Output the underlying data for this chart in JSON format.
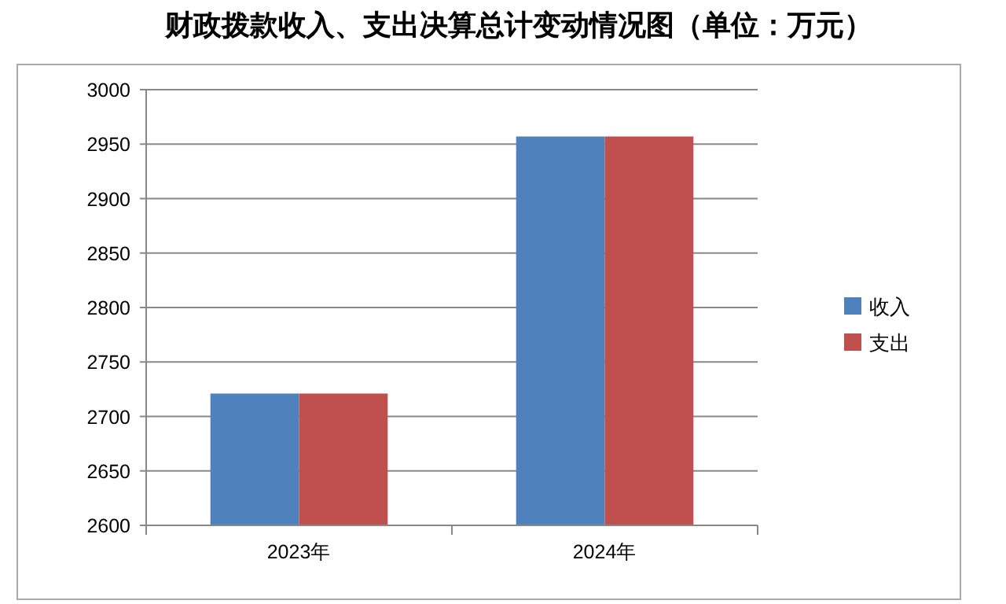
{
  "chart_data": {
    "type": "bar",
    "title": "财政拨款收入、支出决算总计变动情况图（单位：万元）",
    "categories": [
      "2023年",
      "2024年"
    ],
    "series": [
      {
        "name": "收入",
        "color": "#4f81bd",
        "values": [
          2721,
          2957
        ]
      },
      {
        "name": "支出",
        "color": "#c0504d",
        "values": [
          2721,
          2957
        ]
      }
    ],
    "ylim": [
      2600,
      3000
    ],
    "yticks": [
      2600,
      2650,
      2700,
      2750,
      2800,
      2850,
      2900,
      2950,
      3000
    ],
    "grid": "y",
    "legend": "right"
  }
}
